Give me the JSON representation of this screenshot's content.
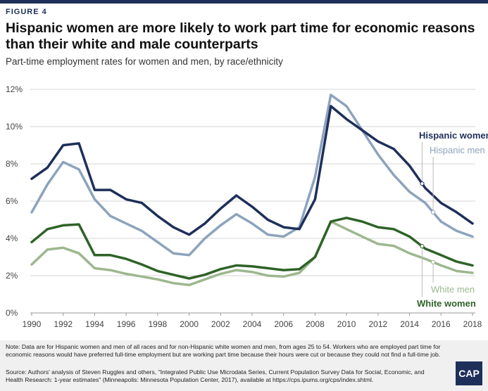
{
  "figure_label": "FIGURE 4",
  "logo_text": "CAP",
  "note": "Note: Data are for Hispanic women and men of all races and for non-Hispanic white women and men, from ages 25 to 54. Workers who are employed part time for economic reasons would have preferred full-time employment but are working part time because their hours were cut or because they could not find a full-time job.",
  "source": "Source: Authors' analysis of Steven Ruggles and others, \"Integrated Public Use Microdata Series, Current Population Survey Data for Social, Economic, and Health Research: 1-year estimates\" (Minneapolis: Minnesota Population Center, 2017), available at https://cps.ipums.org/cps/index.shtml.",
  "chart_data": {
    "type": "line",
    "title": "Hispanic women are more likely to work part time for economic reasons than their white and male counterparts",
    "subtitle": "Part-time employment rates for women and men, by race/ethnicity",
    "xlabel": "",
    "ylabel": "",
    "x": [
      1990,
      1991,
      1992,
      1993,
      1994,
      1995,
      1996,
      1997,
      1998,
      1999,
      2000,
      2001,
      2002,
      2003,
      2004,
      2005,
      2006,
      2007,
      2008,
      2009,
      2010,
      2011,
      2012,
      2013,
      2014,
      2015,
      2016,
      2017,
      2018
    ],
    "xticks": [
      "1990",
      "1992",
      "1994",
      "1996",
      "1998",
      "2000",
      "2002",
      "2004",
      "2006",
      "2008",
      "2010",
      "2012",
      "2014",
      "2016",
      "2018"
    ],
    "yticks": [
      "0%",
      "2%",
      "4%",
      "6%",
      "8%",
      "10%",
      "12%"
    ],
    "ylim": [
      0,
      12
    ],
    "grid": true,
    "series": [
      {
        "name": "Hispanic men",
        "color": "#8ca3bd",
        "values": [
          5.4,
          6.9,
          8.1,
          7.7,
          6.1,
          5.2,
          4.8,
          4.4,
          3.8,
          3.2,
          3.1,
          4.0,
          4.7,
          5.3,
          4.8,
          4.2,
          4.1,
          4.6,
          7.3,
          11.7,
          11.1,
          9.8,
          8.5,
          7.4,
          6.5,
          5.9,
          4.9,
          4.4,
          4.1
        ]
      },
      {
        "name": "Hispanic women",
        "color": "#1e2f5a",
        "values": [
          7.2,
          7.8,
          9.0,
          9.1,
          6.6,
          6.6,
          6.1,
          5.9,
          5.2,
          4.6,
          4.2,
          4.8,
          5.6,
          6.3,
          5.7,
          5.0,
          4.6,
          4.5,
          6.1,
          11.1,
          10.4,
          9.8,
          9.2,
          8.8,
          7.9,
          6.7,
          5.9,
          5.4,
          4.8
        ]
      },
      {
        "name": "White men",
        "color": "#9cb88e",
        "values": [
          2.6,
          3.4,
          3.5,
          3.2,
          2.4,
          2.3,
          2.1,
          1.95,
          1.8,
          1.6,
          1.5,
          1.8,
          2.1,
          2.3,
          2.2,
          2.0,
          1.95,
          2.15,
          3.0,
          4.9,
          4.5,
          4.1,
          3.7,
          3.6,
          3.2,
          2.9,
          2.55,
          2.25,
          2.15
        ]
      },
      {
        "name": "White women",
        "color": "#2f6228",
        "values": [
          3.8,
          4.5,
          4.7,
          4.75,
          3.1,
          3.1,
          2.9,
          2.6,
          2.25,
          2.05,
          1.85,
          2.05,
          2.35,
          2.55,
          2.5,
          2.4,
          2.3,
          2.35,
          3.0,
          4.9,
          5.1,
          4.9,
          4.6,
          4.5,
          4.1,
          3.45,
          3.1,
          2.75,
          2.55
        ]
      }
    ],
    "legend_placement": "inline right"
  }
}
